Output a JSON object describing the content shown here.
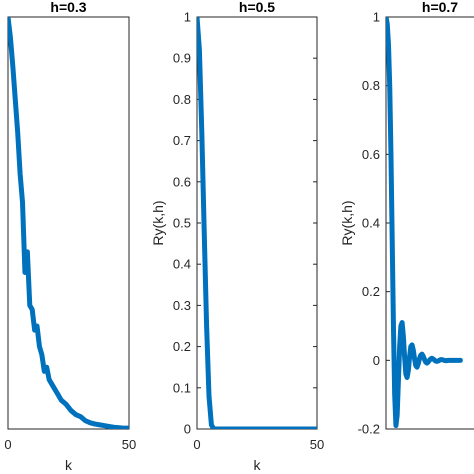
{
  "colors": {
    "series": "#0072BD"
  },
  "chart_data": [
    {
      "type": "line",
      "title": "h=0.3",
      "xlabel": "k",
      "ylabel": "",
      "xlim": [
        0,
        50
      ],
      "ylim": [
        0,
        1
      ],
      "xticks": [
        0,
        50
      ],
      "yticks": [],
      "series": [
        {
          "x": [
            0,
            1,
            2,
            3,
            4,
            5,
            6,
            7,
            8,
            9,
            10,
            11,
            12,
            13,
            14,
            15,
            16,
            17,
            18,
            19,
            20,
            22,
            24,
            26,
            28,
            30,
            32,
            34,
            36,
            38,
            40,
            42,
            44,
            46,
            48,
            50
          ],
          "y": [
            1.0,
            0.95,
            0.88,
            0.8,
            0.72,
            0.62,
            0.55,
            0.38,
            0.43,
            0.3,
            0.29,
            0.24,
            0.25,
            0.2,
            0.18,
            0.14,
            0.15,
            0.12,
            0.11,
            0.1,
            0.09,
            0.07,
            0.06,
            0.045,
            0.035,
            0.03,
            0.02,
            0.015,
            0.012,
            0.01,
            0.008,
            0.006,
            0.004,
            0.003,
            0.002,
            0.002
          ]
        }
      ]
    },
    {
      "type": "line",
      "title": "h=0.5",
      "xlabel": "k",
      "ylabel": "Ry(k,h)",
      "xlim": [
        0,
        50
      ],
      "ylim": [
        0,
        1
      ],
      "xticks": [
        0,
        50
      ],
      "yticks": [
        0,
        0.1,
        0.2,
        0.3,
        0.4,
        0.5,
        0.6,
        0.7,
        0.8,
        0.9,
        1
      ],
      "series": [
        {
          "x": [
            0,
            1,
            2,
            3,
            4,
            5,
            6,
            7,
            50
          ],
          "y": [
            1.0,
            0.92,
            0.72,
            0.48,
            0.25,
            0.08,
            0.01,
            0.0,
            0.0
          ]
        }
      ]
    },
    {
      "type": "line",
      "title": "h=0.7",
      "xlabel": "",
      "ylabel": "Ry(k,h)",
      "xlim": [
        0,
        50
      ],
      "ylim": [
        -0.2,
        1
      ],
      "xticks": [],
      "yticks": [
        -0.2,
        0,
        0.2,
        0.4,
        0.6,
        0.8,
        1
      ],
      "series": [
        {
          "x": [
            0,
            0.5,
            1,
            1.5,
            2,
            2.5,
            3,
            3.5,
            4,
            4.5,
            5,
            5.5,
            6,
            6.5,
            7,
            7.5,
            8,
            8.5,
            9,
            9.5,
            10,
            10.5,
            11,
            11.5,
            12,
            12.5,
            13,
            13.5,
            14,
            14.5,
            15,
            15.5,
            16,
            16.5,
            17,
            17.5,
            18,
            18.5,
            19,
            19.5,
            20,
            20.5,
            21,
            21.5,
            22,
            22.5,
            23,
            23.5,
            24,
            24.5,
            25,
            25.5,
            26,
            26.5,
            27,
            27.5,
            28,
            28.5,
            29,
            29.5,
            30
          ],
          "y": [
            1.0,
            0.98,
            0.92,
            0.8,
            0.6,
            0.35,
            0.1,
            -0.1,
            -0.19,
            -0.16,
            -0.06,
            0.04,
            0.1,
            0.11,
            0.07,
            0.01,
            -0.04,
            -0.05,
            -0.03,
            0.01,
            0.04,
            0.045,
            0.03,
            0.005,
            -0.015,
            -0.02,
            -0.01,
            0.005,
            0.015,
            0.018,
            0.012,
            0.003,
            -0.005,
            -0.008,
            -0.005,
            0.0,
            0.004,
            0.006,
            0.004,
            0.001,
            -0.002,
            -0.003,
            -0.002,
            0.0,
            0.002,
            0.002,
            0.001,
            0.0,
            -0.001,
            -0.001,
            0.0,
            0.0,
            0.0,
            0.0,
            0.0,
            0.0,
            0.0,
            0.0,
            0.0,
            0.0,
            0.0
          ]
        }
      ]
    }
  ]
}
